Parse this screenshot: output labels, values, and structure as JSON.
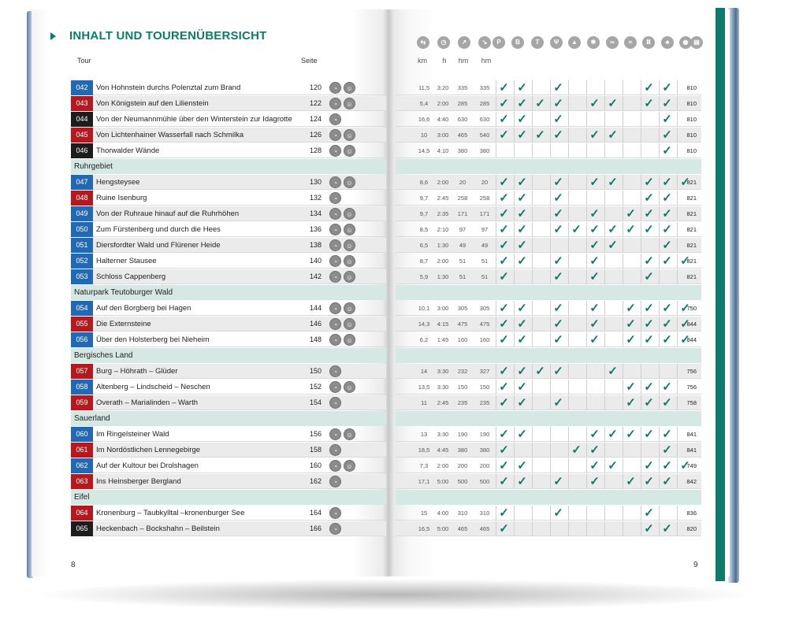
{
  "title": "INHALT UND TOURENÜBERSICHT",
  "col_headers": {
    "tour": "Tour",
    "seite": "Seite"
  },
  "units": [
    "km",
    "h",
    "hm",
    "hm"
  ],
  "legend_icons": [
    "signpost-icon",
    "clock-icon",
    "uphill-icon",
    "downhill-icon",
    "parking-icon",
    "bus-icon",
    "train-icon",
    "restaurant-icon",
    "camping-icon",
    "winter-icon",
    "bike-icon",
    "swim-icon",
    "museum-icon",
    "tree-icon",
    "view-icon",
    "map-icon"
  ],
  "page_numbers": {
    "left": "8",
    "right": "9"
  },
  "rows": [
    {
      "kind": "tour",
      "num": "042",
      "color": "blue",
      "name": "Von Hohnstein durchs Polenztal zum Brand",
      "page": "120",
      "icons": [
        "walk",
        "kids"
      ],
      "km": "11,5",
      "h": "3:20",
      "up": "335",
      "down": "335",
      "checks": [
        1,
        1,
        0,
        1,
        0,
        0,
        0,
        0,
        1,
        1,
        0
      ],
      "map": "810"
    },
    {
      "kind": "tour",
      "num": "043",
      "color": "red",
      "name": "Von Königstein auf den Lilienstein",
      "page": "122",
      "icons": [
        "walk",
        "kids"
      ],
      "km": "5,4",
      "h": "2:00",
      "up": "285",
      "down": "285",
      "checks": [
        1,
        1,
        1,
        1,
        0,
        1,
        1,
        0,
        1,
        1,
        0
      ],
      "map": "810"
    },
    {
      "kind": "tour",
      "num": "044",
      "color": "black",
      "name": "Von der Neumannmühle über den Winterstein zur Idagrotte",
      "page": "124",
      "icons": [
        "walk"
      ],
      "km": "16,6",
      "h": "4:40",
      "up": "630",
      "down": "630",
      "checks": [
        1,
        1,
        0,
        1,
        0,
        0,
        0,
        0,
        0,
        1,
        0
      ],
      "map": "810"
    },
    {
      "kind": "tour",
      "num": "045",
      "color": "red",
      "name": "Von Lichtenhainer Wasserfall nach Schmilka",
      "page": "126",
      "icons": [
        "walk",
        "kids"
      ],
      "km": "10",
      "h": "3:00",
      "up": "465",
      "down": "540",
      "checks": [
        1,
        1,
        1,
        1,
        0,
        1,
        1,
        0,
        0,
        1,
        0
      ],
      "map": "810"
    },
    {
      "kind": "tour",
      "num": "046",
      "color": "black",
      "name": "Thorwalder Wände",
      "page": "128",
      "icons": [
        "walk",
        "kids"
      ],
      "km": "14,5",
      "h": "4:10",
      "up": "380",
      "down": "380",
      "checks": [
        0,
        0,
        0,
        0,
        0,
        0,
        0,
        0,
        0,
        1,
        0
      ],
      "map": "810"
    },
    {
      "kind": "region",
      "name": "Ruhrgebiet"
    },
    {
      "kind": "tour",
      "num": "047",
      "color": "blue",
      "name": "Hengsteysee",
      "page": "130",
      "icons": [
        "walk",
        "kids"
      ],
      "km": "8,6",
      "h": "2:00",
      "up": "20",
      "down": "20",
      "checks": [
        1,
        1,
        0,
        1,
        0,
        1,
        1,
        0,
        1,
        1,
        1
      ],
      "map": "821"
    },
    {
      "kind": "tour",
      "num": "048",
      "color": "red",
      "name": "Ruine Isenburg",
      "page": "132",
      "icons": [
        "walk"
      ],
      "km": "9,7",
      "h": "2:45",
      "up": "258",
      "down": "258",
      "checks": [
        1,
        1,
        0,
        1,
        0,
        0,
        0,
        0,
        1,
        1,
        0
      ],
      "map": "821"
    },
    {
      "kind": "tour",
      "num": "049",
      "color": "blue",
      "name": "Von der Ruhraue hinauf auf die Ruhrhöhen",
      "page": "134",
      "icons": [
        "walk",
        "kids"
      ],
      "km": "9,7",
      "h": "2:35",
      "up": "171",
      "down": "171",
      "checks": [
        1,
        1,
        0,
        1,
        0,
        1,
        0,
        1,
        1,
        1,
        0
      ],
      "map": "821"
    },
    {
      "kind": "tour",
      "num": "050",
      "color": "blue",
      "name": "Zum Fürstenberg und durch die Hees",
      "page": "136",
      "icons": [
        "walk",
        "kids"
      ],
      "km": "8,5",
      "h": "2:10",
      "up": "97",
      "down": "97",
      "checks": [
        1,
        1,
        0,
        1,
        1,
        1,
        1,
        1,
        1,
        1,
        0
      ],
      "map": "821"
    },
    {
      "kind": "tour",
      "num": "051",
      "color": "blue",
      "name": "Diersfordter Wald und Flürener Heide",
      "page": "138",
      "icons": [
        "walk",
        "kids"
      ],
      "km": "6,5",
      "h": "1:30",
      "up": "49",
      "down": "49",
      "checks": [
        1,
        1,
        0,
        0,
        0,
        1,
        1,
        0,
        0,
        1,
        0
      ],
      "map": "821"
    },
    {
      "kind": "tour",
      "num": "052",
      "color": "blue",
      "name": "Halterner Stausee",
      "page": "140",
      "icons": [
        "walk",
        "kids"
      ],
      "km": "8,7",
      "h": "2:00",
      "up": "51",
      "down": "51",
      "checks": [
        1,
        1,
        0,
        1,
        0,
        1,
        0,
        0,
        1,
        1,
        1
      ],
      "map": "821"
    },
    {
      "kind": "tour",
      "num": "053",
      "color": "blue",
      "name": "Schloss Cappenberg",
      "page": "142",
      "icons": [
        "walk",
        "kids"
      ],
      "km": "5,9",
      "h": "1:30",
      "up": "51",
      "down": "51",
      "checks": [
        1,
        0,
        0,
        1,
        0,
        1,
        0,
        0,
        1,
        0,
        0
      ],
      "map": "821"
    },
    {
      "kind": "region",
      "name": "Naturpark Teutoburger Wald"
    },
    {
      "kind": "tour",
      "num": "054",
      "color": "blue",
      "name": "Auf den Borgberg bei Hagen",
      "page": "144",
      "icons": [
        "walk",
        "kids"
      ],
      "km": "10,1",
      "h": "3:00",
      "up": "305",
      "down": "305",
      "checks": [
        1,
        1,
        0,
        1,
        0,
        1,
        0,
        1,
        1,
        1,
        1
      ],
      "map": "750"
    },
    {
      "kind": "tour",
      "num": "055",
      "color": "red",
      "name": "Die Externsteine",
      "page": "146",
      "icons": [
        "walk",
        "kids"
      ],
      "km": "14,3",
      "h": "4:15",
      "up": "475",
      "down": "475",
      "checks": [
        1,
        1,
        0,
        1,
        0,
        1,
        0,
        1,
        1,
        1,
        1
      ],
      "map": "844"
    },
    {
      "kind": "tour",
      "num": "056",
      "color": "blue",
      "name": "Über den Holsterberg bei Nieheim",
      "page": "148",
      "icons": [
        "walk",
        "kids"
      ],
      "km": "6,2",
      "h": "1:45",
      "up": "160",
      "down": "160",
      "checks": [
        1,
        1,
        0,
        1,
        0,
        1,
        0,
        1,
        1,
        1,
        1
      ],
      "map": "844"
    },
    {
      "kind": "region",
      "name": "Bergisches Land"
    },
    {
      "kind": "tour",
      "num": "057",
      "color": "red",
      "name": "Burg – Höhrath – Glüder",
      "page": "150",
      "icons": [
        "walk"
      ],
      "km": "14",
      "h": "3:30",
      "up": "232",
      "down": "327",
      "checks": [
        1,
        1,
        1,
        1,
        0,
        0,
        1,
        0,
        0,
        0,
        0
      ],
      "map": "756"
    },
    {
      "kind": "tour",
      "num": "058",
      "color": "blue",
      "name": "Altenberg – Lindscheid – Neschen",
      "page": "152",
      "icons": [
        "walk",
        "kids"
      ],
      "km": "13,5",
      "h": "3:30",
      "up": "150",
      "down": "150",
      "checks": [
        1,
        1,
        0,
        0,
        0,
        0,
        0,
        1,
        1,
        1,
        0
      ],
      "map": "756"
    },
    {
      "kind": "tour",
      "num": "059",
      "color": "red",
      "name": "Overath – Marialinden – Warth",
      "page": "154",
      "icons": [
        "walk"
      ],
      "km": "11",
      "h": "2:45",
      "up": "235",
      "down": "235",
      "checks": [
        1,
        1,
        0,
        1,
        0,
        0,
        0,
        1,
        1,
        1,
        0
      ],
      "map": "758"
    },
    {
      "kind": "region",
      "name": "Sauerland"
    },
    {
      "kind": "tour",
      "num": "060",
      "color": "blue",
      "name": "Im Ringelsteiner Wald",
      "page": "156",
      "icons": [
        "walk",
        "kids"
      ],
      "km": "13",
      "h": "3:30",
      "up": "190",
      "down": "190",
      "checks": [
        1,
        1,
        0,
        0,
        0,
        1,
        1,
        1,
        1,
        1,
        0
      ],
      "map": "841"
    },
    {
      "kind": "tour",
      "num": "061",
      "color": "red",
      "name": "Im Nordöstlichen Lennegebirge",
      "page": "158",
      "icons": [
        "walk"
      ],
      "km": "18,5",
      "h": "4:45",
      "up": "380",
      "down": "380",
      "checks": [
        1,
        0,
        0,
        0,
        1,
        1,
        0,
        0,
        0,
        1,
        0
      ],
      "map": "841"
    },
    {
      "kind": "tour",
      "num": "062",
      "color": "blue",
      "name": "Auf der Kultour bei Drolshagen",
      "page": "160",
      "icons": [
        "walk",
        "kids"
      ],
      "km": "7,3",
      "h": "2:00",
      "up": "200",
      "down": "200",
      "checks": [
        1,
        1,
        0,
        0,
        0,
        1,
        1,
        0,
        1,
        1,
        1
      ],
      "map": "749"
    },
    {
      "kind": "tour",
      "num": "063",
      "color": "red",
      "name": "Ins Heinsberger Bergland",
      "page": "162",
      "icons": [
        "walk"
      ],
      "km": "17,1",
      "h": "5:00",
      "up": "500",
      "down": "500",
      "checks": [
        1,
        1,
        0,
        1,
        0,
        1,
        0,
        1,
        1,
        1,
        0
      ],
      "map": "842"
    },
    {
      "kind": "region",
      "name": "Eifel"
    },
    {
      "kind": "tour",
      "num": "064",
      "color": "red",
      "name": "Kronenburg – Taubkylltal –kronenburger See",
      "page": "164",
      "icons": [
        "walk"
      ],
      "km": "15",
      "h": "4:00",
      "up": "310",
      "down": "310",
      "checks": [
        1,
        0,
        0,
        1,
        0,
        0,
        0,
        0,
        1,
        0,
        0
      ],
      "map": "836"
    },
    {
      "kind": "tour",
      "num": "065",
      "color": "black",
      "name": "Heckenbach – Bockshahn – Beilstein",
      "page": "166",
      "icons": [
        "walk"
      ],
      "km": "16,5",
      "h": "5:00",
      "up": "465",
      "down": "465",
      "checks": [
        1,
        0,
        0,
        0,
        0,
        0,
        0,
        0,
        1,
        1,
        0
      ],
      "map": "820"
    }
  ]
}
